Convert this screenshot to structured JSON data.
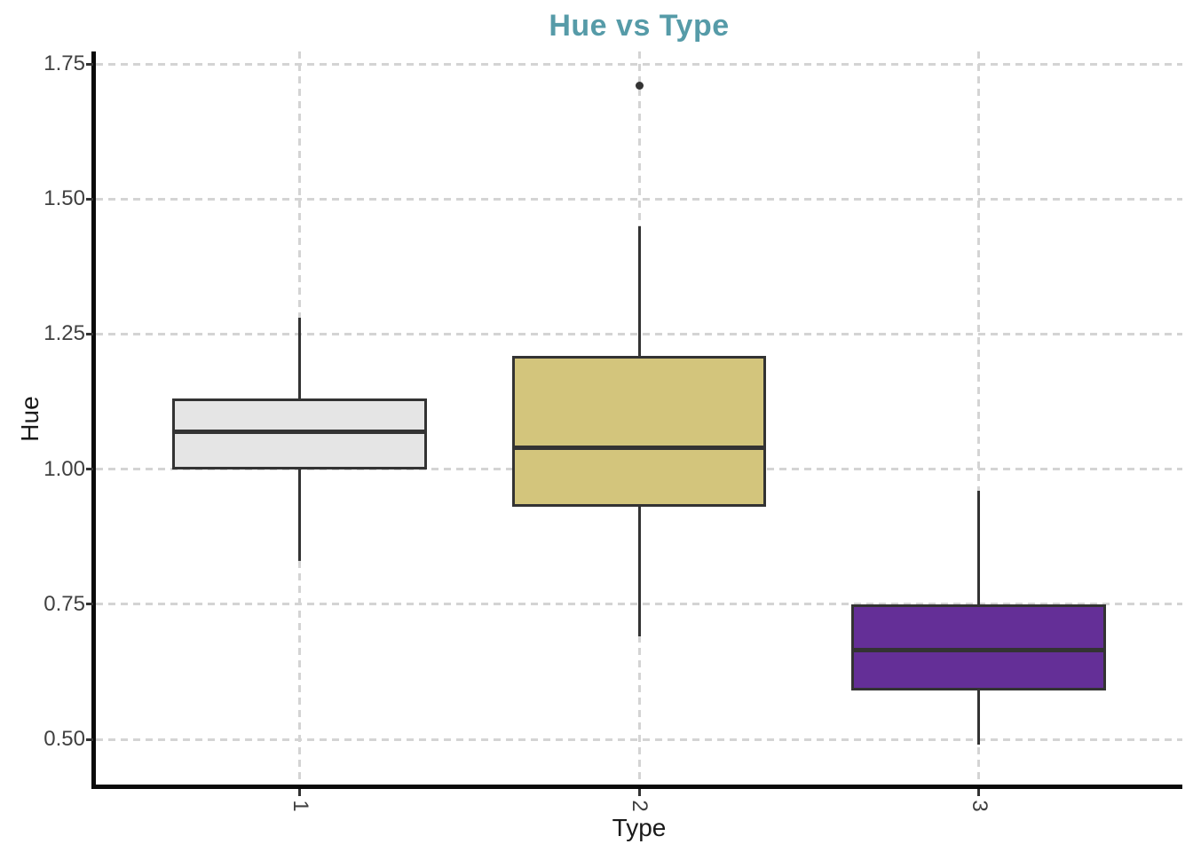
{
  "chart_data": {
    "type": "boxplot",
    "title": "Hue vs Type",
    "xlabel": "Type",
    "ylabel": "Hue",
    "categories": [
      "1",
      "2",
      "3"
    ],
    "y_ticks": [
      0.5,
      0.75,
      1.0,
      1.25,
      1.5,
      1.75
    ],
    "ylim": [
      0.413,
      1.773
    ],
    "grid": "dashed, horizontal at y ticks and vertical at each category",
    "legend": "none",
    "boxes": [
      {
        "category": "1",
        "whisker_low": 0.83,
        "q1": 1.0,
        "median": 1.07,
        "q3": 1.13,
        "whisker_high": 1.28,
        "outliers": [],
        "fill": "#e5e5e5"
      },
      {
        "category": "2",
        "whisker_low": 0.69,
        "q1": 0.93,
        "median": 1.04,
        "q3": 1.21,
        "whisker_high": 1.45,
        "outliers": [
          1.71
        ],
        "fill": "#d3c57c"
      },
      {
        "category": "3",
        "whisker_low": 0.49,
        "q1": 0.59,
        "median": 0.665,
        "q3": 0.75,
        "whisker_high": 0.96,
        "outliers": [],
        "fill": "#642f97"
      }
    ],
    "style": {
      "stroke": "#333333",
      "grid_color": "#d4d4d4",
      "title_color": "#569ba8",
      "axis_color": "#0a0a0a",
      "tick_label_color": "#404040",
      "axis_title_color": "#1a1a1a",
      "background": "#ffffff"
    }
  }
}
